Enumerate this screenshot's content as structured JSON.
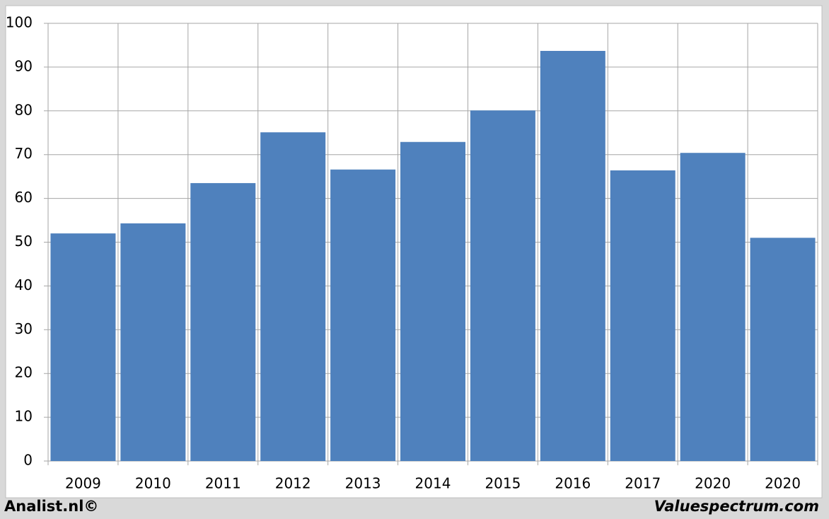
{
  "chart_data": {
    "type": "bar",
    "categories": [
      "2009",
      "2010",
      "2011",
      "2012",
      "2013",
      "2014",
      "2015",
      "2016",
      "2017",
      "2020",
      "2020"
    ],
    "values": [
      52.0,
      54.3,
      63.5,
      75.1,
      66.6,
      72.9,
      80.1,
      93.7,
      66.4,
      70.4,
      51.0
    ],
    "color": "#4f81bd",
    "ylim": [
      0,
      100
    ],
    "yticks": [
      0,
      10,
      20,
      30,
      40,
      50,
      60,
      70,
      80,
      90,
      100
    ],
    "grid": true,
    "annotations": [
      "Analist.nl©",
      "Valuespectrum.com"
    ]
  }
}
